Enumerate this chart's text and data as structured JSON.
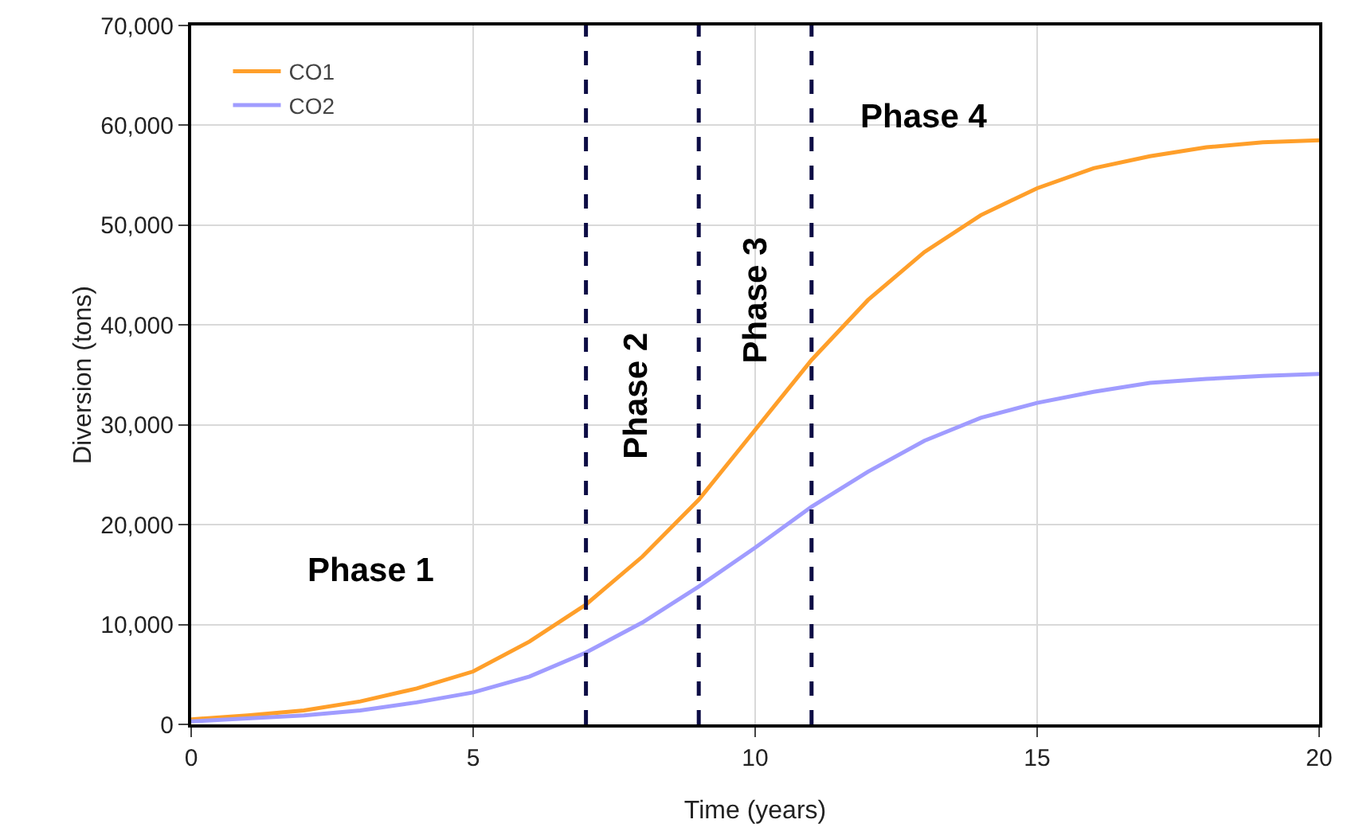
{
  "chart_data": {
    "type": "line",
    "xlabel": "Time (years)",
    "ylabel": "Diversion (tons)",
    "x": [
      0,
      1,
      2,
      3,
      4,
      5,
      6,
      7,
      8,
      9,
      10,
      11,
      12,
      13,
      14,
      15,
      16,
      17,
      18,
      19,
      20
    ],
    "series": [
      {
        "name": "CO1",
        "color": "#ff9f2a",
        "values": [
          500,
          900,
          1400,
          2300,
          3600,
          5300,
          8300,
          12000,
          16800,
          22500,
          29500,
          36500,
          42500,
          47300,
          51000,
          53700,
          55700,
          56900,
          57800,
          58300,
          58500
        ]
      },
      {
        "name": "CO2",
        "color": "#a09cff",
        "values": [
          300,
          600,
          900,
          1400,
          2200,
          3200,
          4800,
          7200,
          10200,
          13800,
          17700,
          21800,
          25300,
          28400,
          30700,
          32200,
          33300,
          34200,
          34600,
          34900,
          35100
        ]
      }
    ],
    "xlim": [
      0,
      20
    ],
    "xticks": [
      0,
      5,
      10,
      15,
      20
    ],
    "ylim": [
      0,
      70000
    ],
    "yticks": [
      {
        "value": 0,
        "label": "0"
      },
      {
        "value": 10000,
        "label": "10,000"
      },
      {
        "value": 20000,
        "label": "20,000"
      },
      {
        "value": 30000,
        "label": "30,000"
      },
      {
        "value": 40000,
        "label": "40,000"
      },
      {
        "value": 50000,
        "label": "50,000"
      },
      {
        "value": 60000,
        "label": "60,000"
      },
      {
        "value": 70000,
        "label": "70,000"
      }
    ],
    "ref_lines": [
      {
        "axis": "x",
        "value": 7,
        "color": "#0d0d45",
        "line_style": "dashed"
      },
      {
        "axis": "x",
        "value": 9,
        "color": "#0d0d45",
        "line_style": "dashed"
      },
      {
        "axis": "x",
        "value": 11,
        "color": "#0d0d45",
        "line_style": "dashed"
      }
    ],
    "annotations": [
      "Phase 1",
      "Phase 2",
      "Phase 3",
      "Phase 4"
    ],
    "grid": true,
    "legend": "top left",
    "marker": "none",
    "line_style": "solid"
  }
}
